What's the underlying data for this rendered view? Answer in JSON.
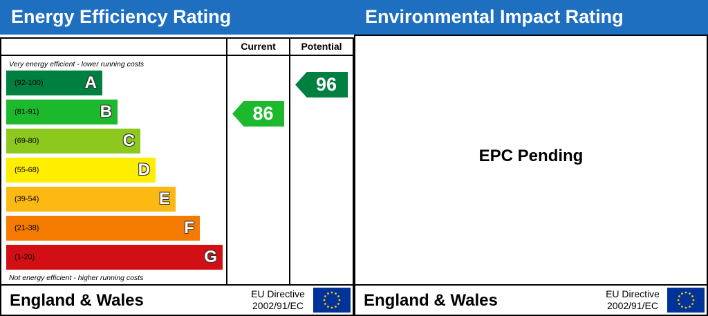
{
  "energy": {
    "title": "Energy Efficiency Rating",
    "col_current": "Current",
    "col_potential": "Potential",
    "top_note": "Very energy efficient - lower running costs",
    "bottom_note": "Not energy efficient - higher running costs",
    "bands": [
      {
        "letter": "A",
        "range": "(92-100)",
        "color": "#008040"
      },
      {
        "letter": "B",
        "range": "(81-91)",
        "color": "#1db92d"
      },
      {
        "letter": "C",
        "range": "(69-80)",
        "color": "#8dc81f"
      },
      {
        "letter": "D",
        "range": "(55-68)",
        "color": "#ffee00"
      },
      {
        "letter": "E",
        "range": "(39-54)",
        "color": "#fcb914"
      },
      {
        "letter": "F",
        "range": "(21-38)",
        "color": "#f47a00"
      },
      {
        "letter": "G",
        "range": "(1-20)",
        "color": "#d20f14"
      }
    ],
    "current": {
      "value": "86",
      "band": "B",
      "color": "#1db92d"
    },
    "potential": {
      "value": "96",
      "band": "A",
      "color": "#008040"
    }
  },
  "environment": {
    "title": "Environmental Impact Rating",
    "status": "EPC Pending"
  },
  "footer": {
    "region": "England & Wales",
    "directive_line1": "EU Directive",
    "directive_line2": "2002/91/EC",
    "flag_icon": "eu-flag-icon"
  },
  "colors": {
    "header_blue": "#1f6fc0",
    "eu_blue": "#003399",
    "eu_star": "#ffcc00"
  }
}
